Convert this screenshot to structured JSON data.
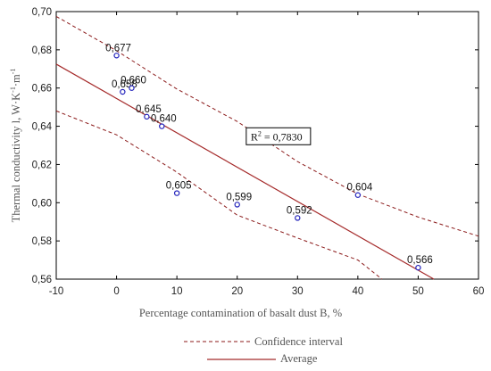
{
  "chart_data": {
    "type": "scatter",
    "xlabel": "Percentage contamination of basalt dust B, %",
    "ylabel_main": "Thermal conductivity l, W·K",
    "ylabel_sup1": "-1",
    "ylabel_mid": "·m",
    "ylabel_sup2": "-1",
    "xlim": [
      -10,
      60
    ],
    "ylim": [
      0.56,
      0.7
    ],
    "x_ticks": [
      -10,
      0,
      10,
      20,
      30,
      40,
      50,
      60
    ],
    "y_ticks": [
      0.56,
      0.58,
      0.6,
      0.62,
      0.64,
      0.66,
      0.68,
      0.7
    ],
    "x_tick_labels": [
      "-10",
      "0",
      "10",
      "20",
      "30",
      "40",
      "50",
      "60"
    ],
    "y_tick_labels": [
      "0,56",
      "0,58",
      "0,60",
      "0,62",
      "0,64",
      "0,66",
      "0,68",
      "0,70"
    ],
    "grid": false,
    "points": [
      {
        "x": 0,
        "y": 0.677,
        "label": "0,677"
      },
      {
        "x": 1,
        "y": 0.658,
        "label": "0,658"
      },
      {
        "x": 2.5,
        "y": 0.66,
        "label": "0,660"
      },
      {
        "x": 5,
        "y": 0.645,
        "label": "0,645"
      },
      {
        "x": 7.5,
        "y": 0.64,
        "label": "0,640"
      },
      {
        "x": 10,
        "y": 0.605,
        "label": "0,605"
      },
      {
        "x": 20,
        "y": 0.599,
        "label": "0,599"
      },
      {
        "x": 30,
        "y": 0.592,
        "label": "0,592"
      },
      {
        "x": 40,
        "y": 0.604,
        "label": "0,604"
      },
      {
        "x": 50,
        "y": 0.566,
        "label": "0,566"
      }
    ],
    "regression_line": {
      "x": [
        -10,
        52.6
      ],
      "y": [
        0.6725,
        0.56
      ]
    },
    "confidence_upper": {
      "x": [
        -10,
        0,
        10,
        20,
        30,
        40,
        50,
        60
      ],
      "y": [
        0.6975,
        0.6795,
        0.6595,
        0.6425,
        0.6215,
        0.6045,
        0.5925,
        0.5825
      ]
    },
    "confidence_lower": {
      "x": [
        -10,
        0,
        10,
        20,
        30,
        40,
        44
      ],
      "y": [
        0.648,
        0.6355,
        0.616,
        0.5935,
        0.5815,
        0.57,
        0.56
      ]
    },
    "annotation": {
      "text": "R",
      "sup": "2",
      "value": " = 0,7830",
      "x": 21.5,
      "y": 0.635
    },
    "legend": [
      {
        "label": "Confidence interval",
        "style": "dashed"
      },
      {
        "label": "Average",
        "style": "solid"
      }
    ],
    "colors": {
      "line": "#a52a2a",
      "points": "#2222bb",
      "axis": "#000000",
      "legend_solid": "#a52a2a",
      "legend_dashed": "#8b1a1a"
    }
  }
}
